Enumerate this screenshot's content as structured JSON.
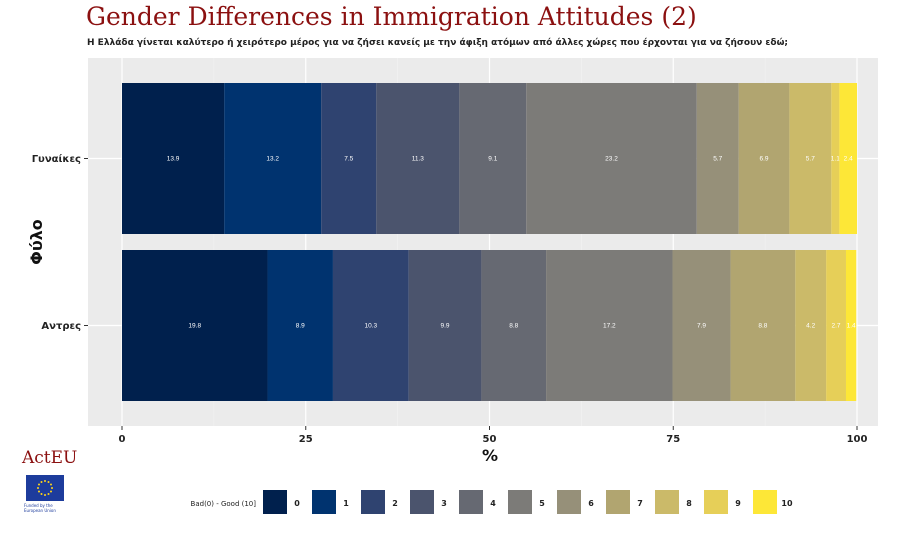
{
  "title": "Gender Differences in Immigration Attitudes (2)",
  "subtitle": "Η Ελλάδα γίνεται καλύτερο ή χειρότερο μέρος για να ζήσει κανείς με την άφιξη ατόμων από άλλες χώρες που έρχονται για να ζήσουν εδώ;",
  "logo": {
    "text": "ActEU",
    "caption": "Funded by the European Union"
  },
  "chart_data": {
    "type": "bar",
    "orientation": "horizontal",
    "stacked": true,
    "xlabel": "%",
    "ylabel": "Φύλο",
    "xlim": [
      0,
      100
    ],
    "xticks": [
      "0",
      "25",
      "50",
      "75",
      "100"
    ],
    "categories": [
      "Γυναίκες",
      "Αντρες"
    ],
    "legend_title": "Bad(0) - Good (10]",
    "legend_position": "bottom",
    "series": [
      {
        "name": "0",
        "values": [
          13.9,
          19.8
        ],
        "labels": [
          "13.9",
          "19.8"
        ],
        "color": "#00204d"
      },
      {
        "name": "1",
        "values": [
          13.2,
          8.9
        ],
        "labels": [
          "13.2",
          "8.9"
        ],
        "color": "#00336f"
      },
      {
        "name": "2",
        "values": [
          7.5,
          10.3
        ],
        "labels": [
          "7.5",
          "10.3"
        ],
        "color": "#2f4370"
      },
      {
        "name": "3",
        "values": [
          11.3,
          9.9
        ],
        "labels": [
          "11.3",
          "9.9"
        ],
        "color": "#4b546d"
      },
      {
        "name": "4",
        "values": [
          9.1,
          8.8
        ],
        "labels": [
          "9.1",
          "8.8"
        ],
        "color": "#666972"
      },
      {
        "name": "5",
        "values": [
          23.2,
          17.2
        ],
        "labels": [
          "23.2",
          "17.2"
        ],
        "color": "#7c7b78"
      },
      {
        "name": "6",
        "values": [
          5.7,
          7.9
        ],
        "labels": [
          "5.7",
          "7.9"
        ],
        "color": "#969079"
      },
      {
        "name": "7",
        "values": [
          6.9,
          8.8
        ],
        "labels": [
          "6.9",
          "8.8"
        ],
        "color": "#b1a570"
      },
      {
        "name": "8",
        "values": [
          5.7,
          4.2
        ],
        "labels": [
          "5.7",
          "4.2"
        ],
        "color": "#cbba69"
      },
      {
        "name": "9",
        "values": [
          1.1,
          2.7
        ],
        "labels": [
          "1.1",
          "2.7"
        ],
        "color": "#e6cf58"
      },
      {
        "name": "10",
        "values": [
          2.4,
          1.4
        ],
        "labels": [
          "2.4",
          "1.4"
        ],
        "color": "#fde737"
      }
    ]
  }
}
